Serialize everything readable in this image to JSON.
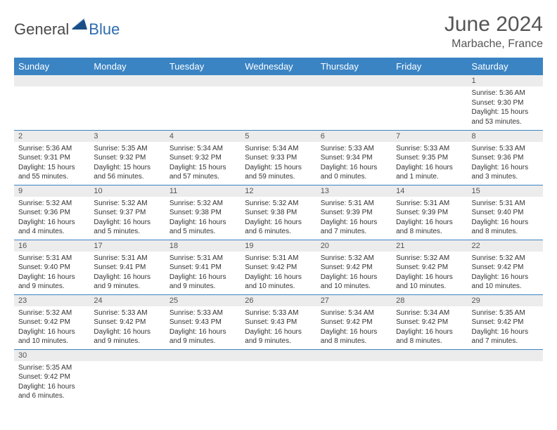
{
  "brand": {
    "part1": "General",
    "part2": "Blue",
    "color1": "#4a4a4a",
    "color2": "#2d6bb0"
  },
  "title": "June 2024",
  "location": "Marbache, France",
  "header_bg": "#3a84c4",
  "daynum_bg": "#ececec",
  "row_border": "#3a84c4",
  "weekdays": [
    "Sunday",
    "Monday",
    "Tuesday",
    "Wednesday",
    "Thursday",
    "Friday",
    "Saturday"
  ],
  "weeks": [
    [
      {
        "n": "",
        "sr": "",
        "ss": "",
        "dl": ""
      },
      {
        "n": "",
        "sr": "",
        "ss": "",
        "dl": ""
      },
      {
        "n": "",
        "sr": "",
        "ss": "",
        "dl": ""
      },
      {
        "n": "",
        "sr": "",
        "ss": "",
        "dl": ""
      },
      {
        "n": "",
        "sr": "",
        "ss": "",
        "dl": ""
      },
      {
        "n": "",
        "sr": "",
        "ss": "",
        "dl": ""
      },
      {
        "n": "1",
        "sr": "Sunrise: 5:36 AM",
        "ss": "Sunset: 9:30 PM",
        "dl": "Daylight: 15 hours and 53 minutes."
      }
    ],
    [
      {
        "n": "2",
        "sr": "Sunrise: 5:36 AM",
        "ss": "Sunset: 9:31 PM",
        "dl": "Daylight: 15 hours and 55 minutes."
      },
      {
        "n": "3",
        "sr": "Sunrise: 5:35 AM",
        "ss": "Sunset: 9:32 PM",
        "dl": "Daylight: 15 hours and 56 minutes."
      },
      {
        "n": "4",
        "sr": "Sunrise: 5:34 AM",
        "ss": "Sunset: 9:32 PM",
        "dl": "Daylight: 15 hours and 57 minutes."
      },
      {
        "n": "5",
        "sr": "Sunrise: 5:34 AM",
        "ss": "Sunset: 9:33 PM",
        "dl": "Daylight: 15 hours and 59 minutes."
      },
      {
        "n": "6",
        "sr": "Sunrise: 5:33 AM",
        "ss": "Sunset: 9:34 PM",
        "dl": "Daylight: 16 hours and 0 minutes."
      },
      {
        "n": "7",
        "sr": "Sunrise: 5:33 AM",
        "ss": "Sunset: 9:35 PM",
        "dl": "Daylight: 16 hours and 1 minute."
      },
      {
        "n": "8",
        "sr": "Sunrise: 5:33 AM",
        "ss": "Sunset: 9:36 PM",
        "dl": "Daylight: 16 hours and 3 minutes."
      }
    ],
    [
      {
        "n": "9",
        "sr": "Sunrise: 5:32 AM",
        "ss": "Sunset: 9:36 PM",
        "dl": "Daylight: 16 hours and 4 minutes."
      },
      {
        "n": "10",
        "sr": "Sunrise: 5:32 AM",
        "ss": "Sunset: 9:37 PM",
        "dl": "Daylight: 16 hours and 5 minutes."
      },
      {
        "n": "11",
        "sr": "Sunrise: 5:32 AM",
        "ss": "Sunset: 9:38 PM",
        "dl": "Daylight: 16 hours and 5 minutes."
      },
      {
        "n": "12",
        "sr": "Sunrise: 5:32 AM",
        "ss": "Sunset: 9:38 PM",
        "dl": "Daylight: 16 hours and 6 minutes."
      },
      {
        "n": "13",
        "sr": "Sunrise: 5:31 AM",
        "ss": "Sunset: 9:39 PM",
        "dl": "Daylight: 16 hours and 7 minutes."
      },
      {
        "n": "14",
        "sr": "Sunrise: 5:31 AM",
        "ss": "Sunset: 9:39 PM",
        "dl": "Daylight: 16 hours and 8 minutes."
      },
      {
        "n": "15",
        "sr": "Sunrise: 5:31 AM",
        "ss": "Sunset: 9:40 PM",
        "dl": "Daylight: 16 hours and 8 minutes."
      }
    ],
    [
      {
        "n": "16",
        "sr": "Sunrise: 5:31 AM",
        "ss": "Sunset: 9:40 PM",
        "dl": "Daylight: 16 hours and 9 minutes."
      },
      {
        "n": "17",
        "sr": "Sunrise: 5:31 AM",
        "ss": "Sunset: 9:41 PM",
        "dl": "Daylight: 16 hours and 9 minutes."
      },
      {
        "n": "18",
        "sr": "Sunrise: 5:31 AM",
        "ss": "Sunset: 9:41 PM",
        "dl": "Daylight: 16 hours and 9 minutes."
      },
      {
        "n": "19",
        "sr": "Sunrise: 5:31 AM",
        "ss": "Sunset: 9:42 PM",
        "dl": "Daylight: 16 hours and 10 minutes."
      },
      {
        "n": "20",
        "sr": "Sunrise: 5:32 AM",
        "ss": "Sunset: 9:42 PM",
        "dl": "Daylight: 16 hours and 10 minutes."
      },
      {
        "n": "21",
        "sr": "Sunrise: 5:32 AM",
        "ss": "Sunset: 9:42 PM",
        "dl": "Daylight: 16 hours and 10 minutes."
      },
      {
        "n": "22",
        "sr": "Sunrise: 5:32 AM",
        "ss": "Sunset: 9:42 PM",
        "dl": "Daylight: 16 hours and 10 minutes."
      }
    ],
    [
      {
        "n": "23",
        "sr": "Sunrise: 5:32 AM",
        "ss": "Sunset: 9:42 PM",
        "dl": "Daylight: 16 hours and 10 minutes."
      },
      {
        "n": "24",
        "sr": "Sunrise: 5:33 AM",
        "ss": "Sunset: 9:42 PM",
        "dl": "Daylight: 16 hours and 9 minutes."
      },
      {
        "n": "25",
        "sr": "Sunrise: 5:33 AM",
        "ss": "Sunset: 9:43 PM",
        "dl": "Daylight: 16 hours and 9 minutes."
      },
      {
        "n": "26",
        "sr": "Sunrise: 5:33 AM",
        "ss": "Sunset: 9:43 PM",
        "dl": "Daylight: 16 hours and 9 minutes."
      },
      {
        "n": "27",
        "sr": "Sunrise: 5:34 AM",
        "ss": "Sunset: 9:42 PM",
        "dl": "Daylight: 16 hours and 8 minutes."
      },
      {
        "n": "28",
        "sr": "Sunrise: 5:34 AM",
        "ss": "Sunset: 9:42 PM",
        "dl": "Daylight: 16 hours and 8 minutes."
      },
      {
        "n": "29",
        "sr": "Sunrise: 5:35 AM",
        "ss": "Sunset: 9:42 PM",
        "dl": "Daylight: 16 hours and 7 minutes."
      }
    ],
    [
      {
        "n": "30",
        "sr": "Sunrise: 5:35 AM",
        "ss": "Sunset: 9:42 PM",
        "dl": "Daylight: 16 hours and 6 minutes."
      },
      {
        "n": "",
        "sr": "",
        "ss": "",
        "dl": ""
      },
      {
        "n": "",
        "sr": "",
        "ss": "",
        "dl": ""
      },
      {
        "n": "",
        "sr": "",
        "ss": "",
        "dl": ""
      },
      {
        "n": "",
        "sr": "",
        "ss": "",
        "dl": ""
      },
      {
        "n": "",
        "sr": "",
        "ss": "",
        "dl": ""
      },
      {
        "n": "",
        "sr": "",
        "ss": "",
        "dl": ""
      }
    ]
  ]
}
